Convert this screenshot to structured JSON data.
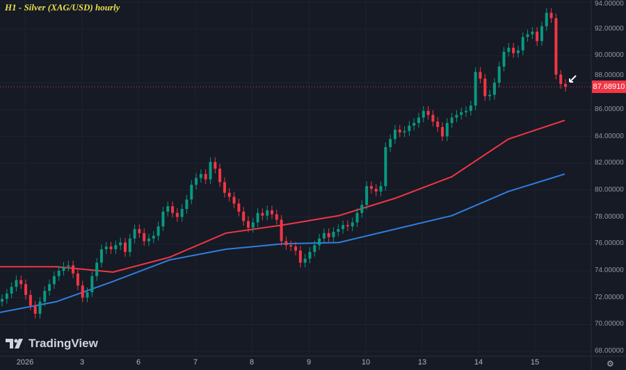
{
  "title": "H1 - Silver (XAG/USD) hourly",
  "brand": "TradingView",
  "current_price_label": "87.68910",
  "colors": {
    "background": "#161a25",
    "up": "#089981",
    "down": "#f23645",
    "ma_fast": "#f23645",
    "ma_slow": "#2f7fe0",
    "title": "#e6e04a"
  },
  "icons": {
    "settings": "gear-icon",
    "annotation": "arrow-icon"
  },
  "chart_data": {
    "type": "candlestick",
    "title": "H1 - Silver (XAG/USD) hourly",
    "ylim": [
      68,
      94
    ],
    "y_ticks": [
      "94.00000",
      "92.00000",
      "90.00000",
      "88.00000",
      "86.00000",
      "84.00000",
      "82.00000",
      "80.00000",
      "78.00000",
      "76.00000",
      "74.00000",
      "72.00000",
      "70.00000",
      "68.00000"
    ],
    "x_ticks": [
      "2026",
      "3",
      "6",
      "7",
      "8",
      "9",
      "10",
      "13",
      "14",
      "15"
    ],
    "grid": true,
    "last_price": 87.6891,
    "closes": [
      71.9,
      72.3,
      72.8,
      73.3,
      73.0,
      72.2,
      71.4,
      70.8,
      71.7,
      72.5,
      73.0,
      73.6,
      74.0,
      74.3,
      74.4,
      73.8,
      72.9,
      72.0,
      72.4,
      73.6,
      74.6,
      75.6,
      75.8,
      75.6,
      75.9,
      76.1,
      75.4,
      76.4,
      77.1,
      76.8,
      76.2,
      76.4,
      76.6,
      77.3,
      78.4,
      78.8,
      78.3,
      78.0,
      78.6,
      79.3,
      80.4,
      80.9,
      81.2,
      80.8,
      82.1,
      81.6,
      80.6,
      79.8,
      79.5,
      79.0,
      78.4,
      77.7,
      77.2,
      77.6,
      78.3,
      78.1,
      78.5,
      78.2,
      77.8,
      76.2,
      75.9,
      75.8,
      75.5,
      74.6,
      74.9,
      75.4,
      75.9,
      76.4,
      76.8,
      76.5,
      76.9,
      77.1,
      77.4,
      77.3,
      77.6,
      78.3,
      78.9,
      80.3,
      80.1,
      79.9,
      80.3,
      83.2,
      83.8,
      84.5,
      84.3,
      84.4,
      84.8,
      85.0,
      85.4,
      85.9,
      85.6,
      85.1,
      84.7,
      84.0,
      85.0,
      85.4,
      85.6,
      85.8,
      85.9,
      86.3,
      88.8,
      88.3,
      87.0,
      87.1,
      88.0,
      89.2,
      90.3,
      90.6,
      90.2,
      90.4,
      91.4,
      91.6,
      91.8,
      91.1,
      92.2,
      93.2,
      92.8,
      88.6,
      87.9,
      87.69
    ],
    "ma_fast": [
      74.3,
      74.3,
      73.9,
      75.0,
      76.8,
      77.4,
      78.1,
      79.4,
      81.0,
      83.8,
      85.2
    ],
    "ma_slow": [
      70.9,
      71.7,
      73.2,
      74.8,
      75.6,
      76.0,
      76.1,
      77.1,
      78.1,
      79.9,
      81.2
    ]
  }
}
